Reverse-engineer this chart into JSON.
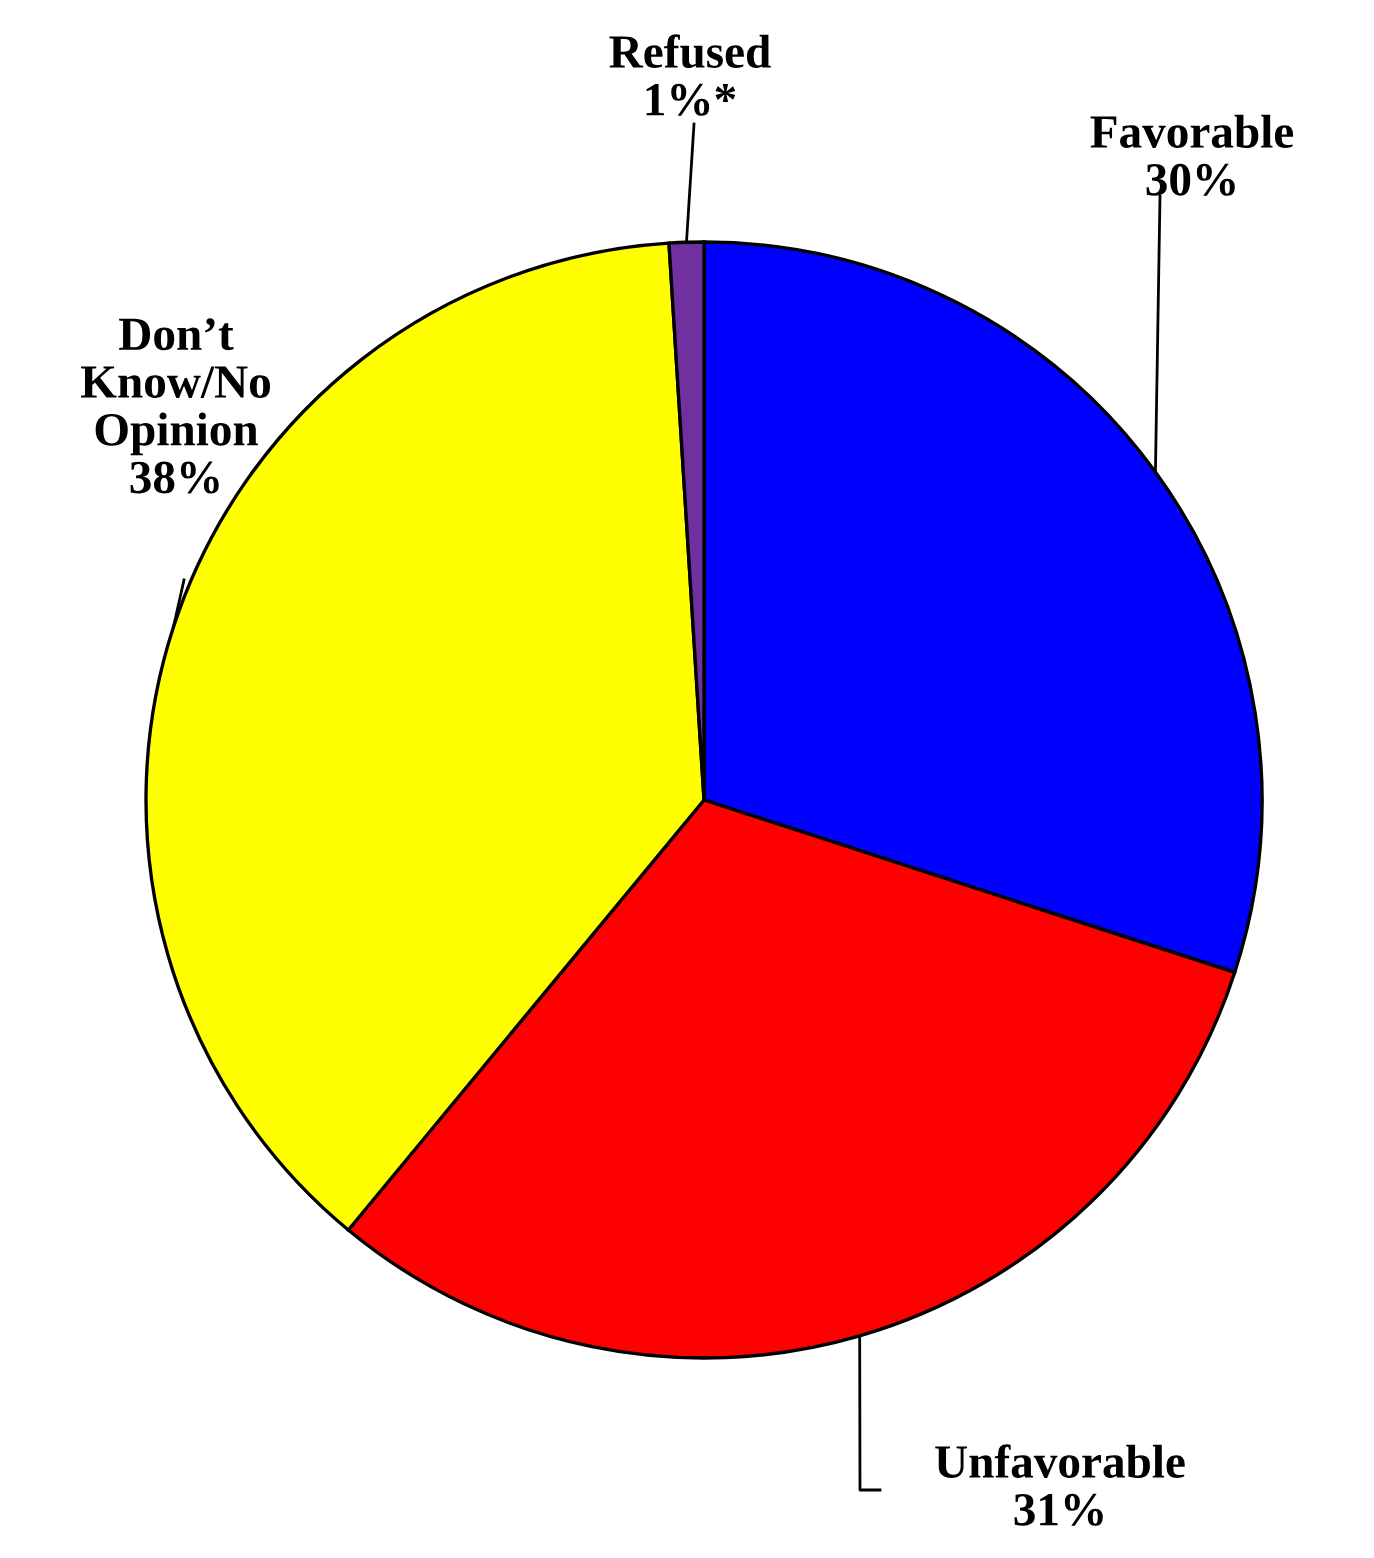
{
  "chart_data": {
    "type": "pie",
    "categories": [
      "Favorable",
      "Unfavorable",
      "Don’t\nKnow/No\nOpinion",
      "Refused"
    ],
    "values": [
      30,
      31,
      38,
      1
    ],
    "value_labels": [
      "30%",
      "31%",
      "38%",
      "1%*"
    ],
    "colors": [
      "#0000ff",
      "#ff0000",
      "#ffff00",
      "#7030a0"
    ],
    "legend": false
  }
}
